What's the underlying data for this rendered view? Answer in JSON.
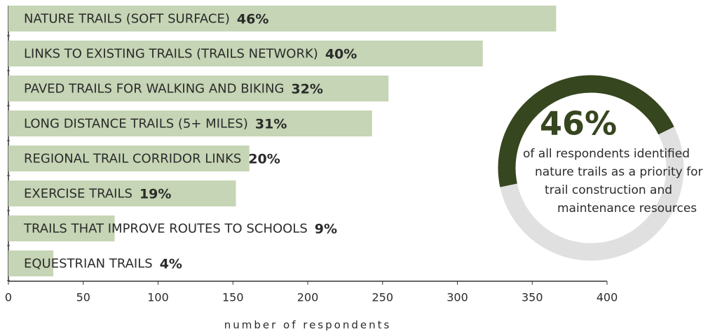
{
  "chart_data": {
    "type": "bar",
    "orientation": "horizontal",
    "categories": [
      "NATURE TRAILS (SOFT SURFACE)",
      "LINKS TO EXISTING TRAILS (TRAILS NETWORK)",
      "PAVED TRAILS FOR WALKING AND BIKING",
      "LONG DISTANCE TRAILS (5+ MILES)",
      "REGIONAL TRAIL CORRIDOR LINKS",
      "EXERCISE TRAILS",
      "TRAILS THAT IMPROVE ROUTES TO SCHOOLS",
      "EQUESTRIAN TRAILS"
    ],
    "values": [
      366,
      317,
      254,
      243,
      161,
      152,
      71,
      30
    ],
    "shares": [
      "46%",
      "40%",
      "32%",
      "31%",
      "20%",
      "19%",
      "9%",
      "4%"
    ],
    "color": "#c6d5b5",
    "xlim": [
      0,
      400
    ],
    "xticks": [
      0,
      50,
      100,
      150,
      200,
      250,
      300,
      350,
      400
    ],
    "xlabel": "number of respondents",
    "donut": {
      "value": 46,
      "total": 100,
      "label": "46%",
      "color": "#36461f",
      "rest_color": "#e0e0e0",
      "text": [
        "of all respondents identified",
        "nature trails as a priority for",
        "trail construction and",
        "maintenance resources"
      ]
    }
  }
}
